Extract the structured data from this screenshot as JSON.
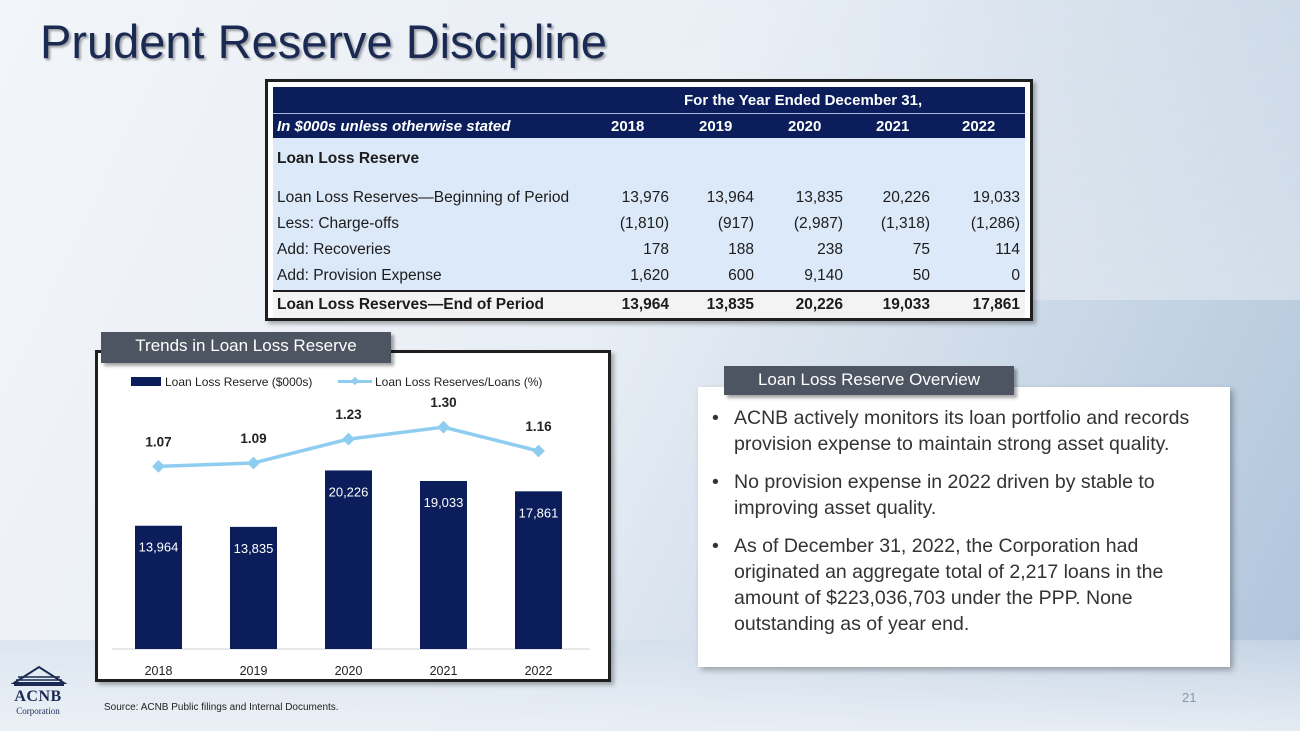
{
  "page": {
    "title": "Prudent Reserve Discipline",
    "source": "Source:  ACNB Public filings and Internal Documents.",
    "page_number": "21",
    "logo": {
      "name": "ACNB",
      "sub": "Corporation"
    }
  },
  "table": {
    "header_top": "For the Year Ended December 31,",
    "header_label": "In $000s unless otherwise stated",
    "years": [
      "2018",
      "2019",
      "2020",
      "2021",
      "2022"
    ],
    "section": "Loan Loss Reserve",
    "rows": [
      {
        "label": "Loan Loss Reserves—Beginning of Period",
        "values": [
          "13,976",
          "13,964",
          "13,835",
          "20,226",
          "19,033"
        ]
      },
      {
        "label": "Less: Charge-offs",
        "values": [
          "(1,810)",
          "(917)",
          "(2,987)",
          "(1,318)",
          "(1,286)"
        ]
      },
      {
        "label": "Add: Recoveries",
        "values": [
          "178",
          "188",
          "238",
          "75",
          "114"
        ]
      },
      {
        "label": "Add: Provision Expense",
        "values": [
          "1,620",
          "600",
          "9,140",
          "50",
          "0"
        ]
      }
    ],
    "total": {
      "label": "Loan Loss Reserves—End of Period",
      "values": [
        "13,964",
        "13,835",
        "20,226",
        "19,033",
        "17,861"
      ]
    }
  },
  "chart_tag": "Trends in Loan Loss Reserve",
  "chart_data": {
    "type": "bar",
    "title": "Trends in Loan Loss Reserve",
    "categories": [
      "2018",
      "2019",
      "2020",
      "2021",
      "2022"
    ],
    "series": [
      {
        "name": "Loan Loss Reserve ($000s)",
        "type": "bar",
        "values": [
          13964,
          13835,
          20226,
          19033,
          17861
        ],
        "labels": [
          "13,964",
          "13,835",
          "20,226",
          "19,033",
          "17,861"
        ],
        "color": "#0b1e5b"
      },
      {
        "name": "Loan Loss Reserves/Loans (%)",
        "type": "line",
        "values": [
          1.07,
          1.09,
          1.23,
          1.3,
          1.16
        ],
        "labels": [
          "1.07",
          "1.09",
          "1.23",
          "1.30",
          "1.16"
        ],
        "color": "#8fcdf0"
      }
    ],
    "legend_position": "top",
    "grid": false,
    "bar_ylim": [
      0,
      29000
    ],
    "line_ylim": [
      0.0,
      1.5
    ]
  },
  "overview": {
    "tag": "Loan Loss Reserve Overview",
    "bullets": [
      "ACNB actively monitors its loan portfolio and records provision expense to maintain strong asset quality.",
      "No provision expense in 2022 driven by stable to improving asset quality.",
      " As of December 31, 2022, the Corporation had originated an aggregate total of 2,217 loans in the amount of $223,036,703 under the PPP.  None outstanding as of year end."
    ]
  }
}
